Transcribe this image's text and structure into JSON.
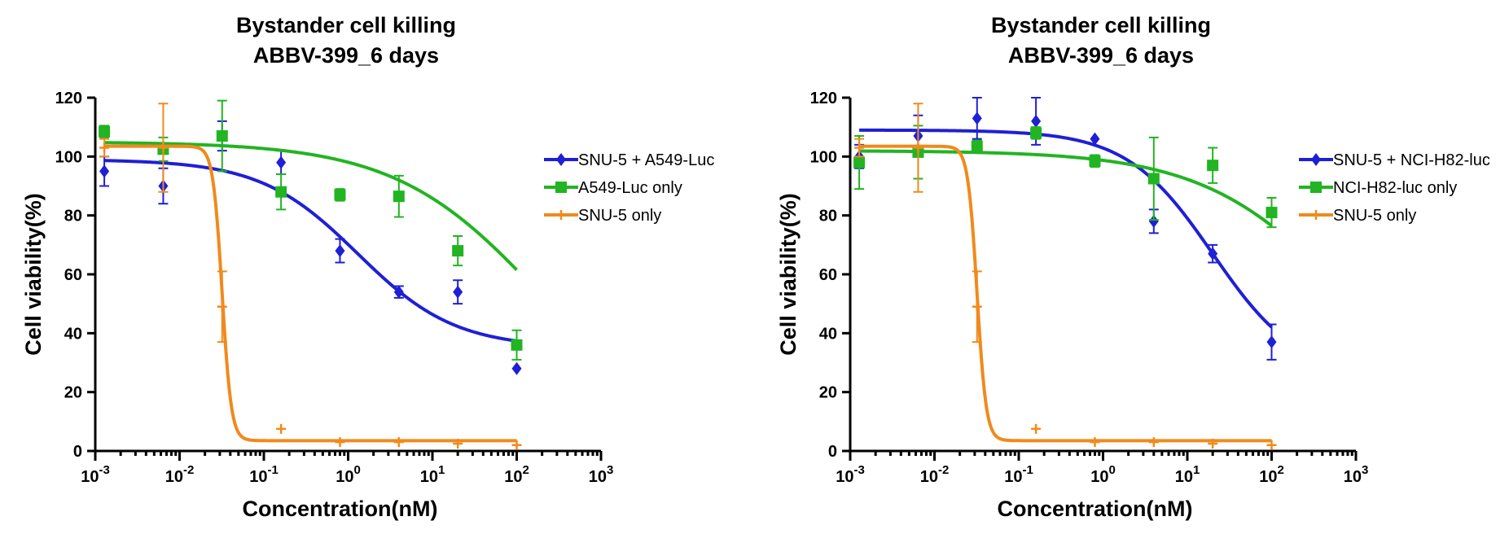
{
  "chart_data": [
    {
      "type": "scatter",
      "title_lines": [
        "Bystander cell killing",
        "ABBV-399_6 days"
      ],
      "xlabel": "Concentration(nM)",
      "ylabel": "Cell viability(%)",
      "x_scale": "log",
      "xlim": [
        0.001,
        1000
      ],
      "ylim": [
        0,
        120
      ],
      "x_ticks": [
        {
          "base": "10",
          "exp": "-3"
        },
        {
          "base": "10",
          "exp": "-2"
        },
        {
          "base": "10",
          "exp": "-1"
        },
        {
          "base": "10",
          "exp": "0"
        },
        {
          "base": "10",
          "exp": "1"
        },
        {
          "base": "10",
          "exp": "2"
        },
        {
          "base": "10",
          "exp": "3"
        }
      ],
      "y_ticks": [
        "0",
        "20",
        "40",
        "60",
        "80",
        "100",
        "120"
      ],
      "legend_position": "right",
      "grid": false,
      "series": [
        {
          "name": "SNU-5 + A549-Luc",
          "color": "#1f1fd6",
          "marker": "diamond",
          "x": [
            0.00128,
            0.0064,
            0.032,
            0.16,
            0.8,
            4,
            20,
            100
          ],
          "y": [
            95,
            90,
            107,
            98,
            68,
            54,
            54,
            28
          ],
          "err": [
            5,
            6,
            5,
            4,
            4,
            2,
            4,
            0
          ],
          "fit": {
            "bottom": 35,
            "top": 99,
            "ec50": 1.3,
            "hill": 0.75
          }
        },
        {
          "name": "A549-Luc only",
          "color": "#22b422",
          "marker": "square",
          "x": [
            0.00128,
            0.0064,
            0.032,
            0.16,
            0.8,
            4,
            20,
            100
          ],
          "y": [
            108.5,
            102.5,
            107,
            88,
            87,
            86.5,
            68,
            36
          ],
          "err": [
            2,
            4,
            12,
            6,
            2,
            7,
            5,
            5
          ],
          "fit": {
            "bottom": 0,
            "top": 105,
            "ec50": 200,
            "hill": 0.5
          }
        },
        {
          "name": "SNU-5 only",
          "color": "#f08a1c",
          "marker": "plus",
          "x": [
            0.00128,
            0.0064,
            0.032,
            0.16,
            0.8,
            4,
            20,
            100
          ],
          "y": [
            103,
            103,
            49,
            7.5,
            3,
            3,
            2.5,
            2
          ],
          "err": [
            3,
            15,
            12,
            0,
            0,
            0,
            0,
            0
          ],
          "fit": {
            "bottom": 3.5,
            "top": 103.5,
            "ec50": 0.032,
            "hill": 8
          }
        }
      ]
    },
    {
      "type": "scatter",
      "title_lines": [
        "Bystander cell killing",
        "ABBV-399_6 days"
      ],
      "xlabel": "Concentration(nM)",
      "ylabel": "Cell viability(%)",
      "x_scale": "log",
      "xlim": [
        0.001,
        1000
      ],
      "ylim": [
        0,
        120
      ],
      "x_ticks": [
        {
          "base": "10",
          "exp": "-3"
        },
        {
          "base": "10",
          "exp": "-2"
        },
        {
          "base": "10",
          "exp": "-1"
        },
        {
          "base": "10",
          "exp": "0"
        },
        {
          "base": "10",
          "exp": "1"
        },
        {
          "base": "10",
          "exp": "2"
        },
        {
          "base": "10",
          "exp": "3"
        }
      ],
      "y_ticks": [
        "0",
        "20",
        "40",
        "60",
        "80",
        "100",
        "120"
      ],
      "legend_position": "right",
      "grid": false,
      "series": [
        {
          "name": "SNU-5 + NCI-H82-luc",
          "color": "#1f1fd6",
          "marker": "diamond",
          "x": [
            0.00128,
            0.0064,
            0.032,
            0.16,
            0.8,
            4,
            20,
            100
          ],
          "y": [
            100,
            107,
            113,
            112,
            106,
            78,
            67,
            37
          ],
          "err": [
            4,
            7,
            7,
            8,
            0,
            4,
            3,
            6
          ],
          "fit": {
            "bottom": 25,
            "top": 109,
            "ec50": 20,
            "hill": 0.85
          }
        },
        {
          "name": "NCI-H82-luc only",
          "color": "#22b422",
          "marker": "square",
          "x": [
            0.00128,
            0.0064,
            0.032,
            0.16,
            0.8,
            4,
            20,
            100
          ],
          "y": [
            98,
            101.5,
            103.5,
            108,
            98.5,
            92.5,
            97,
            81
          ],
          "err": [
            9,
            9,
            2,
            2,
            2,
            14,
            6,
            5
          ],
          "fit": {
            "bottom": 0,
            "top": 102,
            "ec50": 900,
            "hill": 0.5
          }
        },
        {
          "name": "SNU-5 only",
          "color": "#f08a1c",
          "marker": "plus",
          "x": [
            0.00128,
            0.0064,
            0.032,
            0.16,
            0.8,
            4,
            20,
            100
          ],
          "y": [
            103,
            103,
            49,
            7.5,
            3,
            3,
            2.5,
            2
          ],
          "err": [
            3,
            15,
            12,
            0,
            0,
            0,
            0,
            0
          ],
          "fit": {
            "bottom": 3.5,
            "top": 103.5,
            "ec50": 0.032,
            "hill": 8
          }
        }
      ]
    }
  ]
}
